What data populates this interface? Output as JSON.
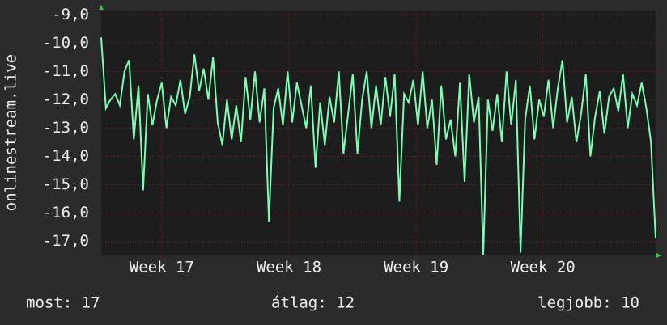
{
  "chart_data": {
    "type": "line",
    "y_label": "onlinestream.live",
    "color": "#7dfcb4",
    "grid": true,
    "xlim": [
      0,
      119
    ],
    "ylim": [
      -17.5,
      -8.85
    ],
    "yticks": [
      {
        "value": -9,
        "label": "-9,0"
      },
      {
        "value": -10,
        "label": "-10,0"
      },
      {
        "value": -11,
        "label": "-11,0"
      },
      {
        "value": -12,
        "label": "-12,0"
      },
      {
        "value": -13,
        "label": "-13,0"
      },
      {
        "value": -14,
        "label": "-14,0"
      },
      {
        "value": -15,
        "label": "-15,0"
      },
      {
        "value": -16,
        "label": "-16,0"
      },
      {
        "value": -17,
        "label": "-17,0"
      }
    ],
    "xticks": [
      {
        "value": 13,
        "label": "Week 17"
      },
      {
        "value": 40.3,
        "label": "Week 18"
      },
      {
        "value": 67.6,
        "label": "Week 19"
      },
      {
        "value": 94.8,
        "label": "Week 20"
      }
    ],
    "values": [
      -9.8,
      -12.3,
      -12.0,
      -11.8,
      -12.2,
      -11.0,
      -10.6,
      -13.4,
      -11.5,
      -15.2,
      -11.8,
      -12.9,
      -12.0,
      -11.4,
      -13.0,
      -11.9,
      -12.2,
      -11.3,
      -12.5,
      -11.9,
      -10.4,
      -11.7,
      -10.9,
      -12.0,
      -10.5,
      -12.8,
      -13.6,
      -12.0,
      -13.4,
      -12.2,
      -13.5,
      -11.2,
      -12.7,
      -11.0,
      -12.8,
      -11.6,
      -16.3,
      -12.3,
      -11.6,
      -12.9,
      -11.0,
      -12.8,
      -11.4,
      -12.2,
      -13.0,
      -11.5,
      -14.4,
      -12.1,
      -13.6,
      -11.9,
      -12.8,
      -11.0,
      -13.9,
      -12.5,
      -11.1,
      -13.9,
      -12.0,
      -11.0,
      -13.0,
      -11.5,
      -12.9,
      -11.2,
      -12.6,
      -11.1,
      -15.6,
      -11.8,
      -12.1,
      -11.3,
      -12.9,
      -11.0,
      -13.0,
      -12.0,
      -14.3,
      -11.5,
      -13.4,
      -12.7,
      -14.0,
      -11.4,
      -14.9,
      -11.1,
      -12.8,
      -11.9,
      -17.5,
      -12.0,
      -13.1,
      -11.8,
      -13.5,
      -11.0,
      -12.9,
      -11.3,
      -17.4,
      -12.7,
      -11.5,
      -13.4,
      -12.0,
      -12.6,
      -11.3,
      -13.0,
      -11.6,
      -10.6,
      -12.8,
      -11.9,
      -13.5,
      -12.5,
      -11.1,
      -14.0,
      -12.6,
      -11.7,
      -13.2,
      -11.9,
      -11.6,
      -12.4,
      -11.1,
      -13.0,
      -11.8,
      -12.2,
      -11.4,
      -12.3,
      -13.5,
      -16.9
    ],
    "footer": [
      "most: 17",
      "átlag: 12",
      "legjobb: 10"
    ]
  }
}
